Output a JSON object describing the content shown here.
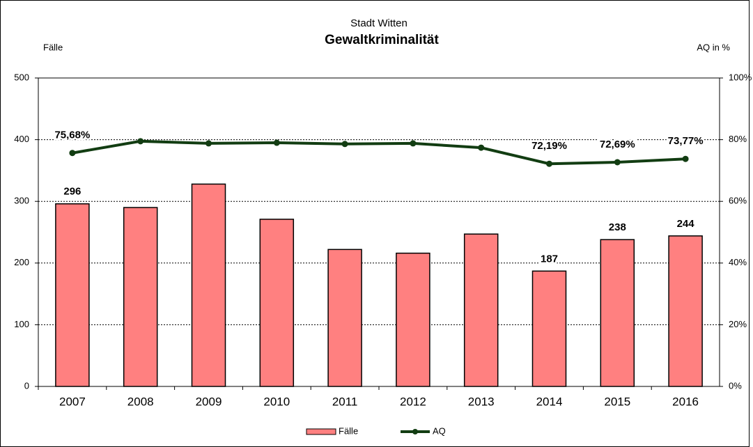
{
  "chart_data": {
    "type": "bar",
    "subtitle": "Stadt Witten",
    "title": "Gewaltkriminalität",
    "ylabel": "Fälle",
    "y2label": "AQ in %",
    "categories": [
      "2007",
      "2008",
      "2009",
      "2010",
      "2011",
      "2012",
      "2013",
      "2014",
      "2015",
      "2016"
    ],
    "series": [
      {
        "name": "Fälle",
        "type": "bar",
        "color": "#ff8080",
        "values": [
          296,
          290,
          328,
          271,
          222,
          216,
          247,
          187,
          238,
          244
        ],
        "value_labels": [
          "296",
          null,
          null,
          null,
          null,
          null,
          null,
          "187",
          "238",
          "244"
        ]
      },
      {
        "name": "AQ",
        "type": "line",
        "axis": "y2",
        "color": "#123d12",
        "values": [
          75.68,
          79.5,
          78.8,
          79.0,
          78.6,
          78.8,
          77.4,
          72.19,
          72.69,
          73.77
        ],
        "value_labels": [
          "75,68%",
          null,
          null,
          null,
          null,
          null,
          null,
          "72,19%",
          "72,69%",
          "73,77%"
        ]
      }
    ],
    "ylim": [
      0,
      500
    ],
    "yticks": [
      0,
      100,
      200,
      300,
      400,
      500
    ],
    "y2lim": [
      0,
      100
    ],
    "y2ticks": [
      {
        "value": 0,
        "label": "0%"
      },
      {
        "value": 20,
        "label": "20%"
      },
      {
        "value": 40,
        "label": "40%"
      },
      {
        "value": 60,
        "label": "60%"
      },
      {
        "value": 80,
        "label": "80%"
      },
      {
        "value": 100,
        "label": "100%"
      }
    ],
    "grid": true,
    "legend": "bottom"
  }
}
